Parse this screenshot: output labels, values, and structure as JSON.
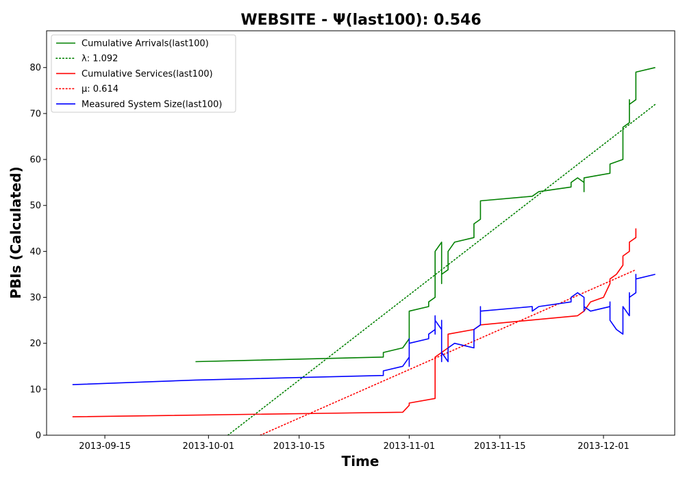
{
  "chart_data": {
    "type": "line",
    "title": "WEBSITE -  Ψ(last100): 0.546",
    "xlabel": "Time",
    "ylabel": "PBIs (Calculated)",
    "xlim": [
      "2013-09-06",
      "2013-12-12"
    ],
    "ylim": [
      0,
      88
    ],
    "x_ticks": [
      "2013-09-15",
      "2013-10-01",
      "2013-10-15",
      "2013-11-01",
      "2013-11-15",
      "2013-12-01"
    ],
    "y_ticks": [
      0,
      10,
      20,
      30,
      40,
      50,
      60,
      70,
      80
    ],
    "grid": false,
    "legend_position": "upper-left",
    "colors": {
      "arrivals": "#008000",
      "services": "#ff0000",
      "size": "#0000ff"
    },
    "series": [
      {
        "name": "Cumulative Arrivals(last100)",
        "color": "#008000",
        "style": "solid",
        "points": [
          [
            "2013-09-29",
            16
          ],
          [
            "2013-10-28",
            17
          ],
          [
            "2013-10-28",
            18
          ],
          [
            "2013-10-31",
            19
          ],
          [
            "2013-11-01",
            21
          ],
          [
            "2013-11-01",
            22
          ],
          [
            "2013-11-01",
            27
          ],
          [
            "2013-11-04",
            28
          ],
          [
            "2013-11-04",
            29
          ],
          [
            "2013-11-05",
            30
          ],
          [
            "2013-11-05",
            35
          ],
          [
            "2013-11-05",
            40
          ],
          [
            "2013-11-06",
            42
          ],
          [
            "2013-11-06",
            41
          ],
          [
            "2013-11-06",
            33
          ],
          [
            "2013-11-06",
            35
          ],
          [
            "2013-11-07",
            36
          ],
          [
            "2013-11-07",
            38
          ],
          [
            "2013-11-07",
            40
          ],
          [
            "2013-11-08",
            42
          ],
          [
            "2013-11-11",
            43
          ],
          [
            "2013-11-11",
            46
          ],
          [
            "2013-11-12",
            47
          ],
          [
            "2013-11-12",
            51
          ],
          [
            "2013-11-20",
            52
          ],
          [
            "2013-11-21",
            53
          ],
          [
            "2013-11-26",
            54
          ],
          [
            "2013-11-26",
            55
          ],
          [
            "2013-11-27",
            56
          ],
          [
            "2013-11-28",
            55
          ],
          [
            "2013-11-28",
            53
          ],
          [
            "2013-11-28",
            56
          ],
          [
            "2013-12-02",
            57
          ],
          [
            "2013-12-02",
            59
          ],
          [
            "2013-12-04",
            60
          ],
          [
            "2013-12-04",
            63
          ],
          [
            "2013-12-04",
            67
          ],
          [
            "2013-12-05",
            68
          ],
          [
            "2013-12-05",
            73
          ],
          [
            "2013-12-05",
            72
          ],
          [
            "2013-12-06",
            73
          ],
          [
            "2013-12-06",
            79
          ],
          [
            "2013-12-09",
            80
          ]
        ]
      },
      {
        "name": "λ: 1.092",
        "color": "#008000",
        "style": "dotted",
        "points": [
          [
            "2013-10-04",
            0
          ],
          [
            "2013-12-09",
            72
          ]
        ]
      },
      {
        "name": "Cumulative Services(last100)",
        "color": "#ff0000",
        "style": "solid",
        "points": [
          [
            "2013-09-10",
            4
          ],
          [
            "2013-10-31",
            5
          ],
          [
            "2013-11-01",
            6.5
          ],
          [
            "2013-11-01",
            7
          ],
          [
            "2013-11-05",
            8
          ],
          [
            "2013-11-05",
            14
          ],
          [
            "2013-11-05",
            17
          ],
          [
            "2013-11-06",
            18
          ],
          [
            "2013-11-07",
            19
          ],
          [
            "2013-11-07",
            22
          ],
          [
            "2013-11-11",
            23
          ],
          [
            "2013-11-12",
            24
          ],
          [
            "2013-11-27",
            26
          ],
          [
            "2013-11-28",
            27
          ],
          [
            "2013-11-29",
            29
          ],
          [
            "2013-12-01",
            30
          ],
          [
            "2013-12-02",
            33
          ],
          [
            "2013-12-02",
            34
          ],
          [
            "2013-12-03",
            35
          ],
          [
            "2013-12-04",
            37
          ],
          [
            "2013-12-04",
            39
          ],
          [
            "2013-12-05",
            40
          ],
          [
            "2013-12-05",
            42
          ],
          [
            "2013-12-06",
            43
          ],
          [
            "2013-12-06",
            45
          ]
        ]
      },
      {
        "name": "μ: 0.614",
        "color": "#ff0000",
        "style": "dotted",
        "points": [
          [
            "2013-10-09",
            0
          ],
          [
            "2013-12-06",
            36
          ]
        ]
      },
      {
        "name": "Measured System Size(last100)",
        "color": "#0000ff",
        "style": "solid",
        "points": [
          [
            "2013-09-10",
            11
          ],
          [
            "2013-09-29",
            12
          ],
          [
            "2013-10-28",
            13
          ],
          [
            "2013-10-28",
            14
          ],
          [
            "2013-10-31",
            15
          ],
          [
            "2013-11-01",
            17
          ],
          [
            "2013-11-01",
            15
          ],
          [
            "2013-11-01",
            16
          ],
          [
            "2013-11-01",
            21
          ],
          [
            "2013-11-01",
            20
          ],
          [
            "2013-11-04",
            21
          ],
          [
            "2013-11-04",
            22
          ],
          [
            "2013-11-05",
            23
          ],
          [
            "2013-11-05",
            26
          ],
          [
            "2013-11-05",
            22
          ],
          [
            "2013-11-05",
            25
          ],
          [
            "2013-11-06",
            23
          ],
          [
            "2013-11-06",
            25
          ],
          [
            "2013-11-06",
            24
          ],
          [
            "2013-11-06",
            17
          ],
          [
            "2013-11-06",
            16
          ],
          [
            "2013-11-06",
            18
          ],
          [
            "2013-11-07",
            16
          ],
          [
            "2013-11-07",
            18
          ],
          [
            "2013-11-07",
            19
          ],
          [
            "2013-11-08",
            20
          ],
          [
            "2013-11-11",
            19
          ],
          [
            "2013-11-11",
            22
          ],
          [
            "2013-11-11",
            23
          ],
          [
            "2013-11-12",
            24
          ],
          [
            "2013-11-12",
            28
          ],
          [
            "2013-11-12",
            27
          ],
          [
            "2013-11-20",
            28
          ],
          [
            "2013-11-20",
            27
          ],
          [
            "2013-11-21",
            28
          ],
          [
            "2013-11-26",
            29
          ],
          [
            "2013-11-26",
            30
          ],
          [
            "2013-11-27",
            31
          ],
          [
            "2013-11-28",
            30
          ],
          [
            "2013-11-28",
            27
          ],
          [
            "2013-11-28",
            28
          ],
          [
            "2013-11-29",
            27
          ],
          [
            "2013-12-02",
            28
          ],
          [
            "2013-12-02",
            29
          ],
          [
            "2013-12-02",
            25
          ],
          [
            "2013-12-03",
            23
          ],
          [
            "2013-12-04",
            22
          ],
          [
            "2013-12-04",
            26
          ],
          [
            "2013-12-04",
            28
          ],
          [
            "2013-12-05",
            26
          ],
          [
            "2013-12-05",
            31
          ],
          [
            "2013-12-05",
            30
          ],
          [
            "2013-12-06",
            31
          ],
          [
            "2013-12-06",
            35
          ],
          [
            "2013-12-06",
            34
          ],
          [
            "2013-12-09",
            35
          ]
        ]
      }
    ]
  }
}
